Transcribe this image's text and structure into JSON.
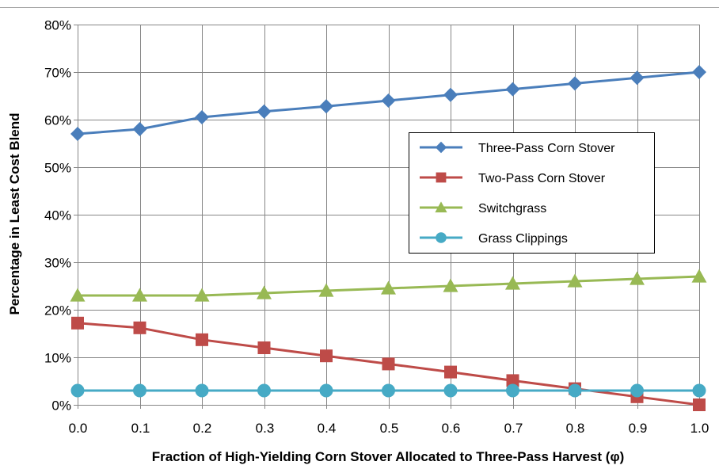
{
  "chart_data": {
    "type": "line",
    "title": "",
    "xlabel": "Fraction of High-Yielding Corn Stover Allocated to Three-Pass Harvest (φ)",
    "ylabel": "Percentage in Least Cost Blend",
    "x": [
      0.0,
      0.1,
      0.2,
      0.3,
      0.4,
      0.5,
      0.6,
      0.7,
      0.8,
      0.9,
      1.0
    ],
    "x_tick_labels": [
      "0.0",
      "0.1",
      "0.2",
      "0.3",
      "0.4",
      "0.5",
      "0.6",
      "0.7",
      "0.8",
      "0.9",
      "1.0"
    ],
    "y_tick_labels": [
      "0%",
      "10%",
      "20%",
      "30%",
      "40%",
      "50%",
      "60%",
      "70%",
      "80%"
    ],
    "xlim": [
      0,
      1
    ],
    "ylim": [
      0,
      80
    ],
    "grid": true,
    "legend_position": "right",
    "series": [
      {
        "name": "Three-Pass Corn Stover",
        "color": "#4a7ebb",
        "marker": "diamond",
        "values": [
          57.0,
          58.0,
          60.5,
          61.7,
          62.8,
          64.0,
          65.2,
          66.4,
          67.6,
          68.8,
          70.0
        ]
      },
      {
        "name": "Two-Pass Corn Stover",
        "color": "#be4b48",
        "marker": "square",
        "values": [
          17.2,
          16.2,
          13.7,
          12.0,
          10.3,
          8.6,
          6.9,
          5.1,
          3.4,
          1.7,
          0.0
        ]
      },
      {
        "name": "Switchgrass",
        "color": "#98b954",
        "marker": "triangle",
        "values": [
          23.0,
          23.0,
          23.0,
          23.5,
          24.0,
          24.5,
          25.0,
          25.5,
          26.0,
          26.5,
          27.0
        ]
      },
      {
        "name": "Grass Clippings",
        "color": "#46aac5",
        "marker": "circle",
        "values": [
          3.0,
          3.0,
          3.0,
          3.0,
          3.0,
          3.0,
          3.0,
          3.0,
          3.0,
          3.0,
          3.0
        ]
      }
    ]
  }
}
